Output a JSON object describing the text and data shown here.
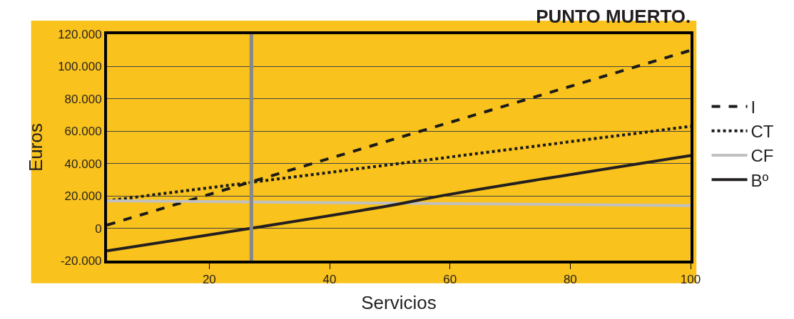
{
  "chart_data": {
    "type": "line",
    "title": "PUNTO MUERTO.",
    "xlabel": "Servicios",
    "ylabel": "Euros",
    "xlim": [
      3,
      100
    ],
    "xticks": [
      20,
      40,
      60,
      80,
      100
    ],
    "ylim": [
      -20000,
      120000
    ],
    "yticks": [
      {
        "value": -20000,
        "label": "-20.000"
      },
      {
        "value": 0,
        "label": "0"
      },
      {
        "value": 20000,
        "label": "20.000"
      },
      {
        "value": 40000,
        "label": "40.000"
      },
      {
        "value": 60000,
        "label": "60.000"
      },
      {
        "value": 80000,
        "label": "80.000"
      },
      {
        "value": 100000,
        "label": "100.000"
      },
      {
        "value": 120000,
        "label": "120.000"
      }
    ],
    "grid": "y",
    "legend": "right",
    "marker": "none",
    "ref_lines": [
      {
        "axis": "x",
        "value": 27,
        "color": "#888888"
      }
    ],
    "series": [
      {
        "name": "I",
        "color": "#1a1a1a",
        "line_style": "dashed",
        "x": [
          3,
          100
        ],
        "values": [
          2000,
          110000
        ]
      },
      {
        "name": "CT",
        "color": "#1a1a1a",
        "line_style": "dotted",
        "x": [
          3,
          100
        ],
        "values": [
          17000,
          63000
        ]
      },
      {
        "name": "CF",
        "color": "#c0c0c0",
        "line_style": "solid",
        "x": [
          3,
          100
        ],
        "values": [
          17000,
          14000
        ]
      },
      {
        "name": "Bº",
        "color": "#231f20",
        "line_style": "solid",
        "x": [
          3,
          27,
          50,
          60,
          100
        ],
        "values": [
          -14000,
          0,
          14000,
          21000,
          45000
        ]
      }
    ]
  }
}
